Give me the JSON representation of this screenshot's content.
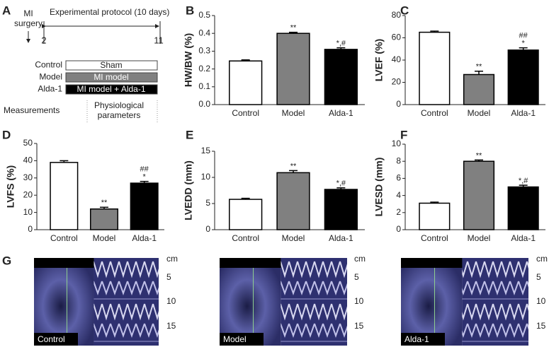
{
  "panel_labels": [
    "A",
    "B",
    "C",
    "D",
    "E",
    "F",
    "G"
  ],
  "protocol": {
    "surgery": [
      "MI",
      "surgery"
    ],
    "title": "Experimental protocol (10 days)",
    "start": "2",
    "end": "11",
    "groups": [
      {
        "name": "Control",
        "treatment": "Sham"
      },
      {
        "name": "Model",
        "treatment": "MI model"
      },
      {
        "name": "Alda-1",
        "treatment": "MI model + Alda-1"
      }
    ],
    "measurements": "Measurements",
    "parameters": [
      "Physiological",
      "parameters"
    ]
  },
  "chart_data": [
    {
      "type": "bar",
      "ylabel": "HW/BW (%)",
      "categories": [
        "Control",
        "Model",
        "Alda-1"
      ],
      "values": [
        0.245,
        0.4,
        0.31
      ],
      "errors": [
        0.006,
        0.006,
        0.009
      ],
      "colors": [
        "#ffffff",
        "#808080",
        "#000000"
      ],
      "annotations": [
        null,
        [
          "**"
        ],
        [
          "*,#"
        ]
      ],
      "ylim": [
        0,
        0.5
      ],
      "yticks": [
        {
          "value": 0,
          "label": "0.0"
        },
        0.1,
        0.2,
        0.3,
        0.4,
        0.5
      ]
    },
    {
      "type": "bar",
      "ylabel": "LVEF (%)",
      "categories": [
        "Control",
        "Model",
        "Alda-1"
      ],
      "values": [
        65,
        27,
        49
      ],
      "errors": [
        1,
        3,
        2
      ],
      "colors": [
        "#ffffff",
        "#808080",
        "#000000"
      ],
      "annotations": [
        null,
        [
          "**"
        ],
        [
          "##",
          "*"
        ]
      ],
      "ylim": [
        0,
        80
      ],
      "yticks": [
        0,
        20,
        40,
        60,
        80
      ]
    },
    {
      "type": "bar",
      "ylabel": "LVFS (%)",
      "categories": [
        "Control",
        "Model",
        "Alda-1"
      ],
      "values": [
        39,
        12,
        27
      ],
      "errors": [
        1,
        1,
        1
      ],
      "colors": [
        "#ffffff",
        "#808080",
        "#000000"
      ],
      "annotations": [
        null,
        [
          "**"
        ],
        [
          "##",
          "*"
        ]
      ],
      "ylim": [
        0,
        50
      ],
      "yticks": [
        0,
        10,
        20,
        30,
        40,
        50
      ]
    },
    {
      "type": "bar",
      "ylabel": "LVEDD (mm)",
      "categories": [
        "Control",
        "Model",
        "Alda-1"
      ],
      "values": [
        5.8,
        10.9,
        7.7
      ],
      "errors": [
        0.2,
        0.4,
        0.3
      ],
      "colors": [
        "#ffffff",
        "#808080",
        "#000000"
      ],
      "annotations": [
        null,
        [
          "**"
        ],
        [
          "*,#"
        ]
      ],
      "ylim": [
        0,
        15
      ],
      "yticks": [
        0,
        5,
        10,
        15
      ]
    },
    {
      "type": "bar",
      "ylabel": "LVESD (mm)",
      "categories": [
        "Control",
        "Model",
        "Alda-1"
      ],
      "values": [
        3.1,
        8.0,
        5.0
      ],
      "errors": [
        0.12,
        0.15,
        0.2
      ],
      "colors": [
        "#ffffff",
        "#808080",
        "#000000"
      ],
      "annotations": [
        null,
        [
          "**"
        ],
        [
          "*,#"
        ]
      ],
      "ylim": [
        0,
        10
      ],
      "yticks": [
        0,
        2,
        4,
        6,
        8,
        10
      ]
    }
  ],
  "echo": {
    "labels": [
      "Control",
      "Model",
      "Alda-1"
    ],
    "scale": [
      "cm",
      "5",
      "10",
      "15"
    ]
  }
}
